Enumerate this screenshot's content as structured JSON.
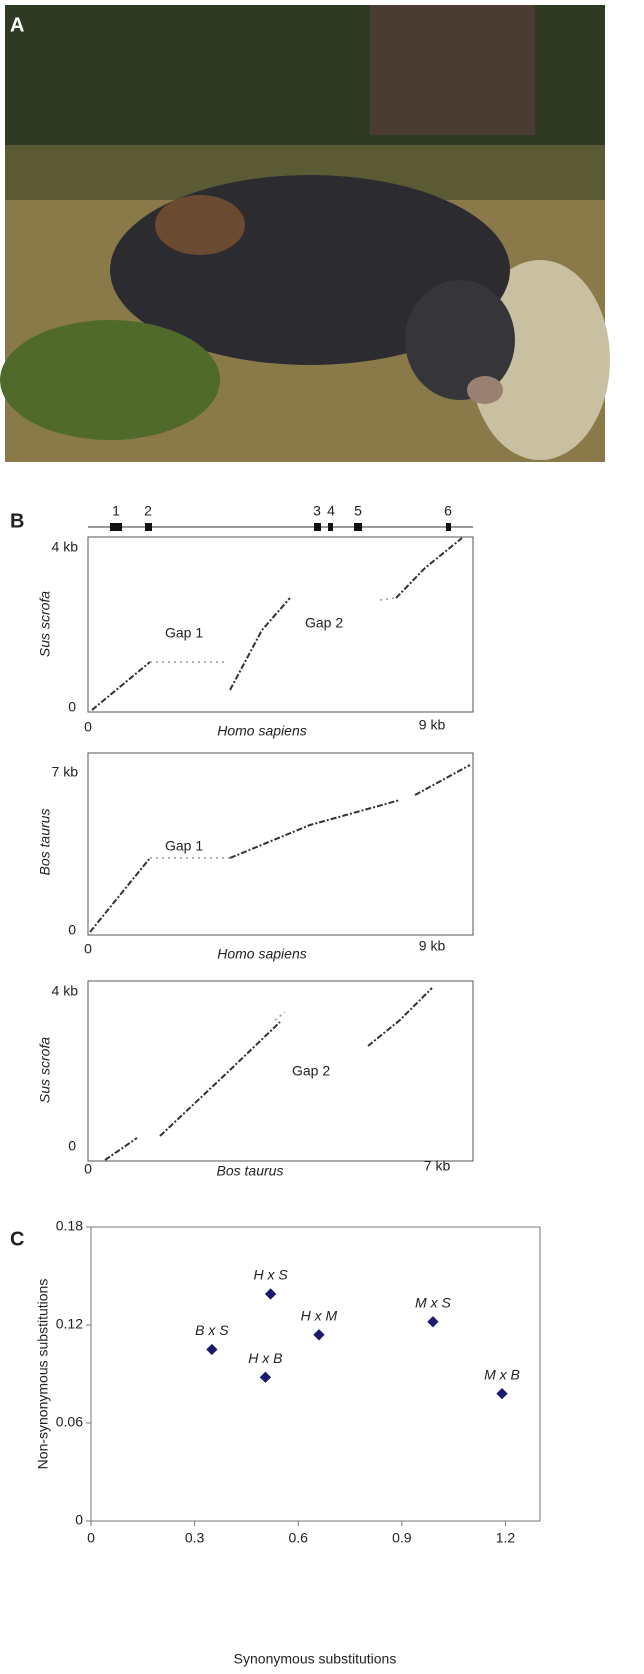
{
  "panel_labels": [
    "A",
    "B",
    "C"
  ],
  "panel_B": {
    "gene_map": [
      "1",
      "2",
      "3",
      "4",
      "5",
      "6"
    ],
    "dotplots": [
      {
        "y_label": "Sus scrofa",
        "x_label": "Homo sapiens",
        "y_top": "4 kb",
        "y_zero": "0",
        "x_zero": "0",
        "x_end": "9 kb",
        "gaps": [
          "Gap 1",
          "Gap 2"
        ]
      },
      {
        "y_label": "Bos taurus",
        "x_label": "Homo sapiens",
        "y_top": "7 kb",
        "y_zero": "0",
        "x_zero": "0",
        "x_end": "9 kb",
        "gaps": [
          "Gap 1"
        ]
      },
      {
        "y_label": "Sus scrofa",
        "x_label": "Bos taurus",
        "y_top": "4 kb",
        "y_zero": "0",
        "x_zero": "0",
        "x_end": "7 kb",
        "gaps": [
          "Gap 2"
        ]
      }
    ]
  },
  "chart_data": {
    "type": "scatter",
    "x_label": "Synonymous substitutions",
    "y_label": "Non-synonymous substitutions",
    "labels": [
      "H x S",
      "H x M",
      "B x S",
      "H x B",
      "M x S",
      "M x B"
    ],
    "x": [
      0.52,
      0.66,
      0.35,
      0.505,
      0.99,
      1.19
    ],
    "values": [
      0.139,
      0.114,
      0.105,
      0.088,
      0.122,
      0.078
    ],
    "color": "#1a1a6e",
    "xlim": [
      0,
      1.3
    ],
    "xticks": [
      0,
      0.3,
      0.6,
      0.9,
      1.2
    ],
    "ylim": [
      0,
      0.18
    ],
    "yticks": [
      0,
      0.06,
      0.12,
      0.18
    ]
  }
}
